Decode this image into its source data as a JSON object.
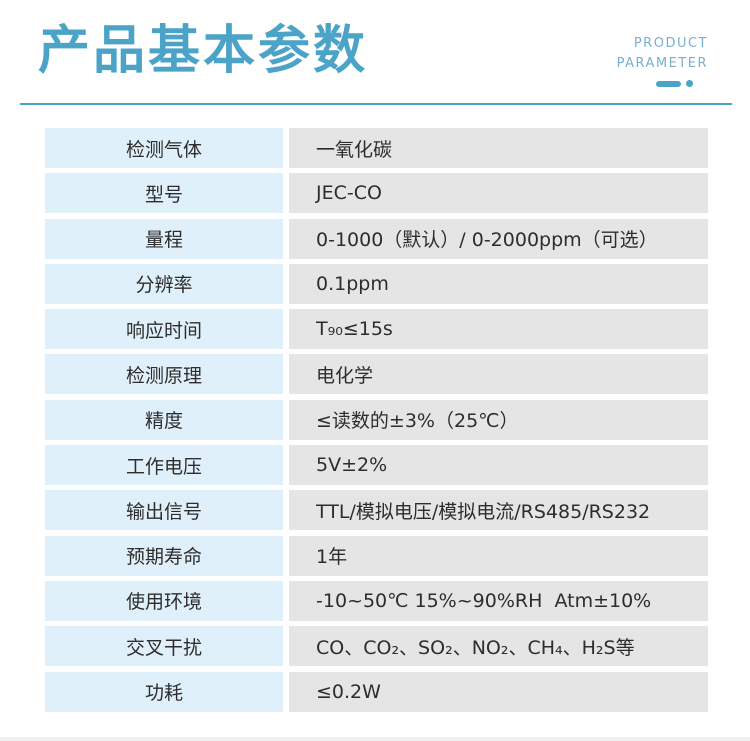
{
  "page": {
    "header": {
      "title": "产品基本参数",
      "subtitle_lines": [
        "PRODUCT",
        "PARAMETER"
      ]
    },
    "colors": {
      "accent_blue": "#4BA3C8",
      "subtitle_blue": "#7AB0CF",
      "label_cell_bg": "#E0F0FA",
      "value_cell_bg": "#E5E5E5",
      "text_dark": "#2D2D2D"
    },
    "table": {
      "rows": [
        {
          "label": "检测气体",
          "value": "一氧化碳"
        },
        {
          "label": "型号",
          "value": "JEC-CO"
        },
        {
          "label": "量程",
          "value": "0-1000（默认）/ 0-2000ppm（可选）"
        },
        {
          "label": "分辨率",
          "value": "0.1ppm"
        },
        {
          "label": "响应时间",
          "value": "T₉₀≤15s"
        },
        {
          "label": "检测原理",
          "value": "电化学"
        },
        {
          "label": "精度",
          "value": "≤读数的±3%（25℃）"
        },
        {
          "label": "工作电压",
          "value": "5V±2%"
        },
        {
          "label": "输出信号",
          "value": "TTL/模拟电压/模拟电流/RS485/RS232"
        },
        {
          "label": "预期寿命",
          "value": "1年"
        },
        {
          "label": "使用环境",
          "value": "-10~50℃ 15%~90%RH  Atm±10%"
        },
        {
          "label": "交叉干扰",
          "value": "CO、CO₂、SO₂、NO₂、CH₄、H₂S等"
        },
        {
          "label": "功耗",
          "value": "≤0.2W"
        }
      ]
    }
  }
}
